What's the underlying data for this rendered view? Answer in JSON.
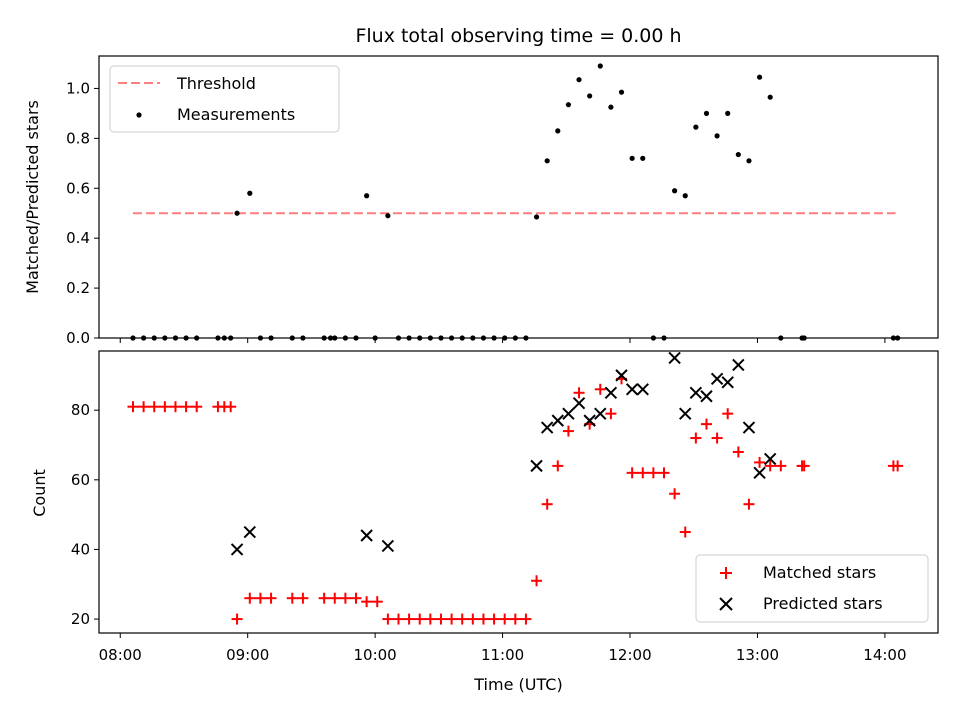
{
  "chart_data": [
    {
      "type": "scatter",
      "title": "Flux total observing time = 0.00 h",
      "ylabel": "Matched/Predicted stars",
      "xlim": [
        "07:50",
        "14:25"
      ],
      "ylim": [
        0,
        1.13
      ],
      "yticks": [
        "0.0",
        "0.2",
        "0.4",
        "0.6",
        "0.8",
        "1.0"
      ],
      "legend_position": "upper-left",
      "threshold": {
        "name": "Threshold",
        "value": 0.5,
        "x_start": "08:06",
        "x_end": "14:05",
        "color": "#ff7f7f",
        "style": "dashed"
      },
      "series": [
        {
          "name": "Measurements",
          "color": "#000000",
          "marker": "dot",
          "points": [
            [
              "08:06",
              0.0
            ],
            [
              "08:11",
              0.0
            ],
            [
              "08:16",
              0.0
            ],
            [
              "08:21",
              0.0
            ],
            [
              "08:26",
              0.0
            ],
            [
              "08:31",
              0.0
            ],
            [
              "08:36",
              0.0
            ],
            [
              "08:46",
              0.0
            ],
            [
              "08:49",
              0.0
            ],
            [
              "08:52",
              0.0
            ],
            [
              "08:55",
              0.5
            ],
            [
              "09:01",
              0.58
            ],
            [
              "09:06",
              0.0
            ],
            [
              "09:11",
              0.0
            ],
            [
              "09:21",
              0.0
            ],
            [
              "09:26",
              0.0
            ],
            [
              "09:36",
              0.0
            ],
            [
              "09:39",
              0.0
            ],
            [
              "09:41",
              0.0
            ],
            [
              "09:46",
              0.0
            ],
            [
              "09:51",
              0.0
            ],
            [
              "09:56",
              0.57
            ],
            [
              "10:00",
              0.0
            ],
            [
              "10:06",
              0.49
            ],
            [
              "10:11",
              0.0
            ],
            [
              "10:16",
              0.0
            ],
            [
              "10:21",
              0.0
            ],
            [
              "10:26",
              0.0
            ],
            [
              "10:31",
              0.0
            ],
            [
              "10:36",
              0.0
            ],
            [
              "10:41",
              0.0
            ],
            [
              "10:46",
              0.0
            ],
            [
              "10:51",
              0.0
            ],
            [
              "10:56",
              0.0
            ],
            [
              "11:01",
              0.0
            ],
            [
              "11:06",
              0.0
            ],
            [
              "11:11",
              0.0
            ],
            [
              "11:16",
              0.485
            ],
            [
              "11:21",
              0.71
            ],
            [
              "11:26",
              0.83
            ],
            [
              "11:31",
              0.935
            ],
            [
              "11:36",
              1.035
            ],
            [
              "11:41",
              0.97
            ],
            [
              "11:46",
              1.09
            ],
            [
              "11:51",
              0.925
            ],
            [
              "11:56",
              0.985
            ],
            [
              "12:01",
              0.72
            ],
            [
              "12:06",
              0.72
            ],
            [
              "12:11",
              0.0
            ],
            [
              "12:16",
              0.0
            ],
            [
              "12:21",
              0.59
            ],
            [
              "12:26",
              0.57
            ],
            [
              "12:31",
              0.845
            ],
            [
              "12:36",
              0.9
            ],
            [
              "12:41",
              0.81
            ],
            [
              "12:46",
              0.9
            ],
            [
              "12:51",
              0.735
            ],
            [
              "12:56",
              0.71
            ],
            [
              "13:01",
              1.045
            ],
            [
              "13:06",
              0.965
            ],
            [
              "13:11",
              0.0
            ],
            [
              "13:21",
              0.0
            ],
            [
              "13:22",
              0.0
            ],
            [
              "14:04",
              0.0
            ],
            [
              "14:06",
              0.0
            ]
          ]
        }
      ]
    },
    {
      "type": "scatter",
      "xlabel": "Time (UTC)",
      "ylabel": "Count",
      "xlim": [
        "07:50",
        "14:25"
      ],
      "ylim": [
        16,
        97
      ],
      "xticks": [
        "08:00",
        "09:00",
        "10:00",
        "11:00",
        "12:00",
        "13:00",
        "14:00"
      ],
      "yticks": [
        "20",
        "40",
        "60",
        "80"
      ],
      "legend_position": "lower-right",
      "series": [
        {
          "name": "Matched stars",
          "color": "#ff0000",
          "marker": "plus",
          "points": [
            [
              "08:06",
              81
            ],
            [
              "08:11",
              81
            ],
            [
              "08:16",
              81
            ],
            [
              "08:21",
              81
            ],
            [
              "08:26",
              81
            ],
            [
              "08:31",
              81
            ],
            [
              "08:36",
              81
            ],
            [
              "08:46",
              81
            ],
            [
              "08:49",
              81
            ],
            [
              "08:52",
              81
            ],
            [
              "08:55",
              20
            ],
            [
              "09:01",
              26
            ],
            [
              "09:06",
              26
            ],
            [
              "09:11",
              26
            ],
            [
              "09:21",
              26
            ],
            [
              "09:26",
              26
            ],
            [
              "09:36",
              26
            ],
            [
              "09:41",
              26
            ],
            [
              "09:46",
              26
            ],
            [
              "09:51",
              26
            ],
            [
              "09:56",
              25
            ],
            [
              "10:01",
              25
            ],
            [
              "10:06",
              20
            ],
            [
              "10:11",
              20
            ],
            [
              "10:16",
              20
            ],
            [
              "10:21",
              20
            ],
            [
              "10:26",
              20
            ],
            [
              "10:31",
              20
            ],
            [
              "10:36",
              20
            ],
            [
              "10:41",
              20
            ],
            [
              "10:46",
              20
            ],
            [
              "10:51",
              20
            ],
            [
              "10:56",
              20
            ],
            [
              "11:01",
              20
            ],
            [
              "11:06",
              20
            ],
            [
              "11:11",
              20
            ],
            [
              "11:16",
              31
            ],
            [
              "11:21",
              53
            ],
            [
              "11:26",
              64
            ],
            [
              "11:31",
              74
            ],
            [
              "11:36",
              85
            ],
            [
              "11:41",
              76
            ],
            [
              "11:46",
              86
            ],
            [
              "11:51",
              79
            ],
            [
              "11:56",
              89
            ],
            [
              "12:01",
              62
            ],
            [
              "12:06",
              62
            ],
            [
              "12:11",
              62
            ],
            [
              "12:16",
              62
            ],
            [
              "12:21",
              56
            ],
            [
              "12:26",
              45
            ],
            [
              "12:31",
              72
            ],
            [
              "12:36",
              76
            ],
            [
              "12:41",
              72
            ],
            [
              "12:46",
              79
            ],
            [
              "12:51",
              68
            ],
            [
              "12:56",
              53
            ],
            [
              "13:01",
              65
            ],
            [
              "13:06",
              64
            ],
            [
              "13:11",
              64
            ],
            [
              "13:21",
              64
            ],
            [
              "13:22",
              64
            ],
            [
              "14:04",
              64
            ],
            [
              "14:06",
              64
            ]
          ]
        },
        {
          "name": "Predicted stars",
          "color": "#000000",
          "marker": "x",
          "points": [
            [
              "08:55",
              40
            ],
            [
              "09:01",
              45
            ],
            [
              "09:56",
              44
            ],
            [
              "10:06",
              41
            ],
            [
              "11:16",
              64
            ],
            [
              "11:21",
              75
            ],
            [
              "11:26",
              77
            ],
            [
              "11:31",
              79
            ],
            [
              "11:36",
              82
            ],
            [
              "11:41",
              77
            ],
            [
              "11:46",
              79
            ],
            [
              "11:51",
              85
            ],
            [
              "11:56",
              90
            ],
            [
              "12:01",
              86
            ],
            [
              "12:06",
              86
            ],
            [
              "12:21",
              95
            ],
            [
              "12:26",
              79
            ],
            [
              "12:31",
              85
            ],
            [
              "12:36",
              84
            ],
            [
              "12:41",
              89
            ],
            [
              "12:46",
              88
            ],
            [
              "12:51",
              93
            ],
            [
              "12:56",
              75
            ],
            [
              "13:01",
              62
            ],
            [
              "13:06",
              66
            ]
          ]
        }
      ]
    }
  ]
}
